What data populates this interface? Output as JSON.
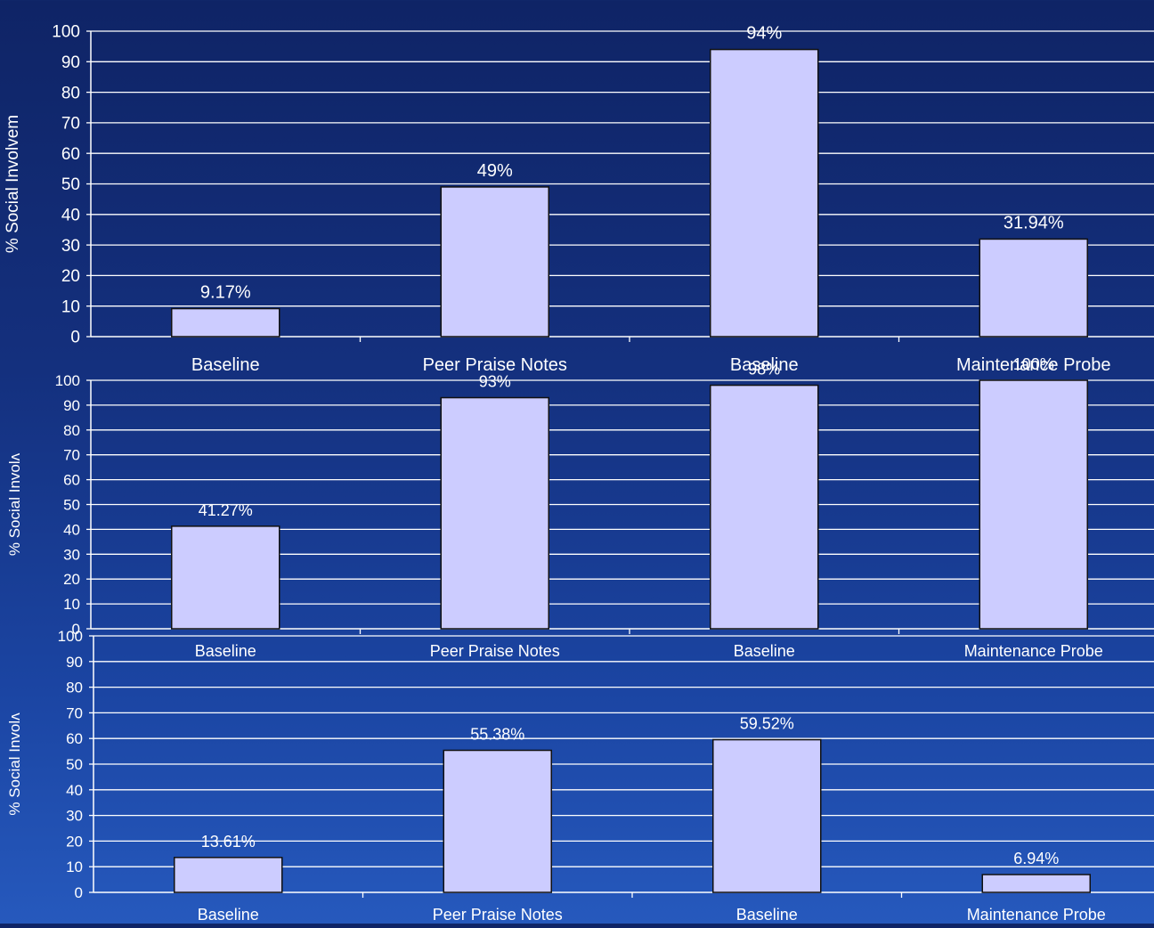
{
  "colors": {
    "bar_fill": "#ccccff",
    "bar_stroke": "#111111",
    "grid": "#ffffff",
    "text": "#ffffff"
  },
  "chart_data": [
    {
      "type": "bar",
      "categories": [
        "Baseline",
        "Peer Praise Notes",
        "Baseline",
        "Maintenance Probe"
      ],
      "values": [
        9.17,
        49,
        94,
        31.94
      ],
      "data_labels": [
        "9.17%",
        "49%",
        "94%",
        "31.94%"
      ],
      "ylabel": "% Social Involvem",
      "ylim": [
        0,
        100
      ],
      "yticks": [
        "0",
        "10",
        "20",
        "30",
        "40",
        "50",
        "60",
        "70",
        "80",
        "90",
        "100"
      ],
      "grid": true
    },
    {
      "type": "bar",
      "categories": [
        "Baseline",
        "Peer Praise Notes",
        "Baseline",
        "Maintenance Probe"
      ],
      "values": [
        41.27,
        93,
        98,
        100
      ],
      "data_labels": [
        "41.27%",
        "93%",
        "98%",
        "100%"
      ],
      "ylabel": "% Social Involʌ",
      "ylim": [
        0,
        100
      ],
      "yticks": [
        "0",
        "10",
        "20",
        "30",
        "40",
        "50",
        "60",
        "70",
        "80",
        "90",
        "100"
      ],
      "grid": true
    },
    {
      "type": "bar",
      "categories": [
        "Baseline",
        "Peer Praise Notes",
        "Baseline",
        "Maintenance Probe"
      ],
      "values": [
        13.61,
        55.38,
        59.52,
        6.94
      ],
      "data_labels": [
        "13.61%",
        "55.38%",
        "59.52%",
        "6.94%"
      ],
      "ylabel": "% Social Involʌ",
      "ylim": [
        0,
        100
      ],
      "yticks": [
        "0",
        "10",
        "20",
        "30",
        "40",
        "50",
        "60",
        "70",
        "80",
        "90",
        "100"
      ],
      "grid": true
    }
  ]
}
